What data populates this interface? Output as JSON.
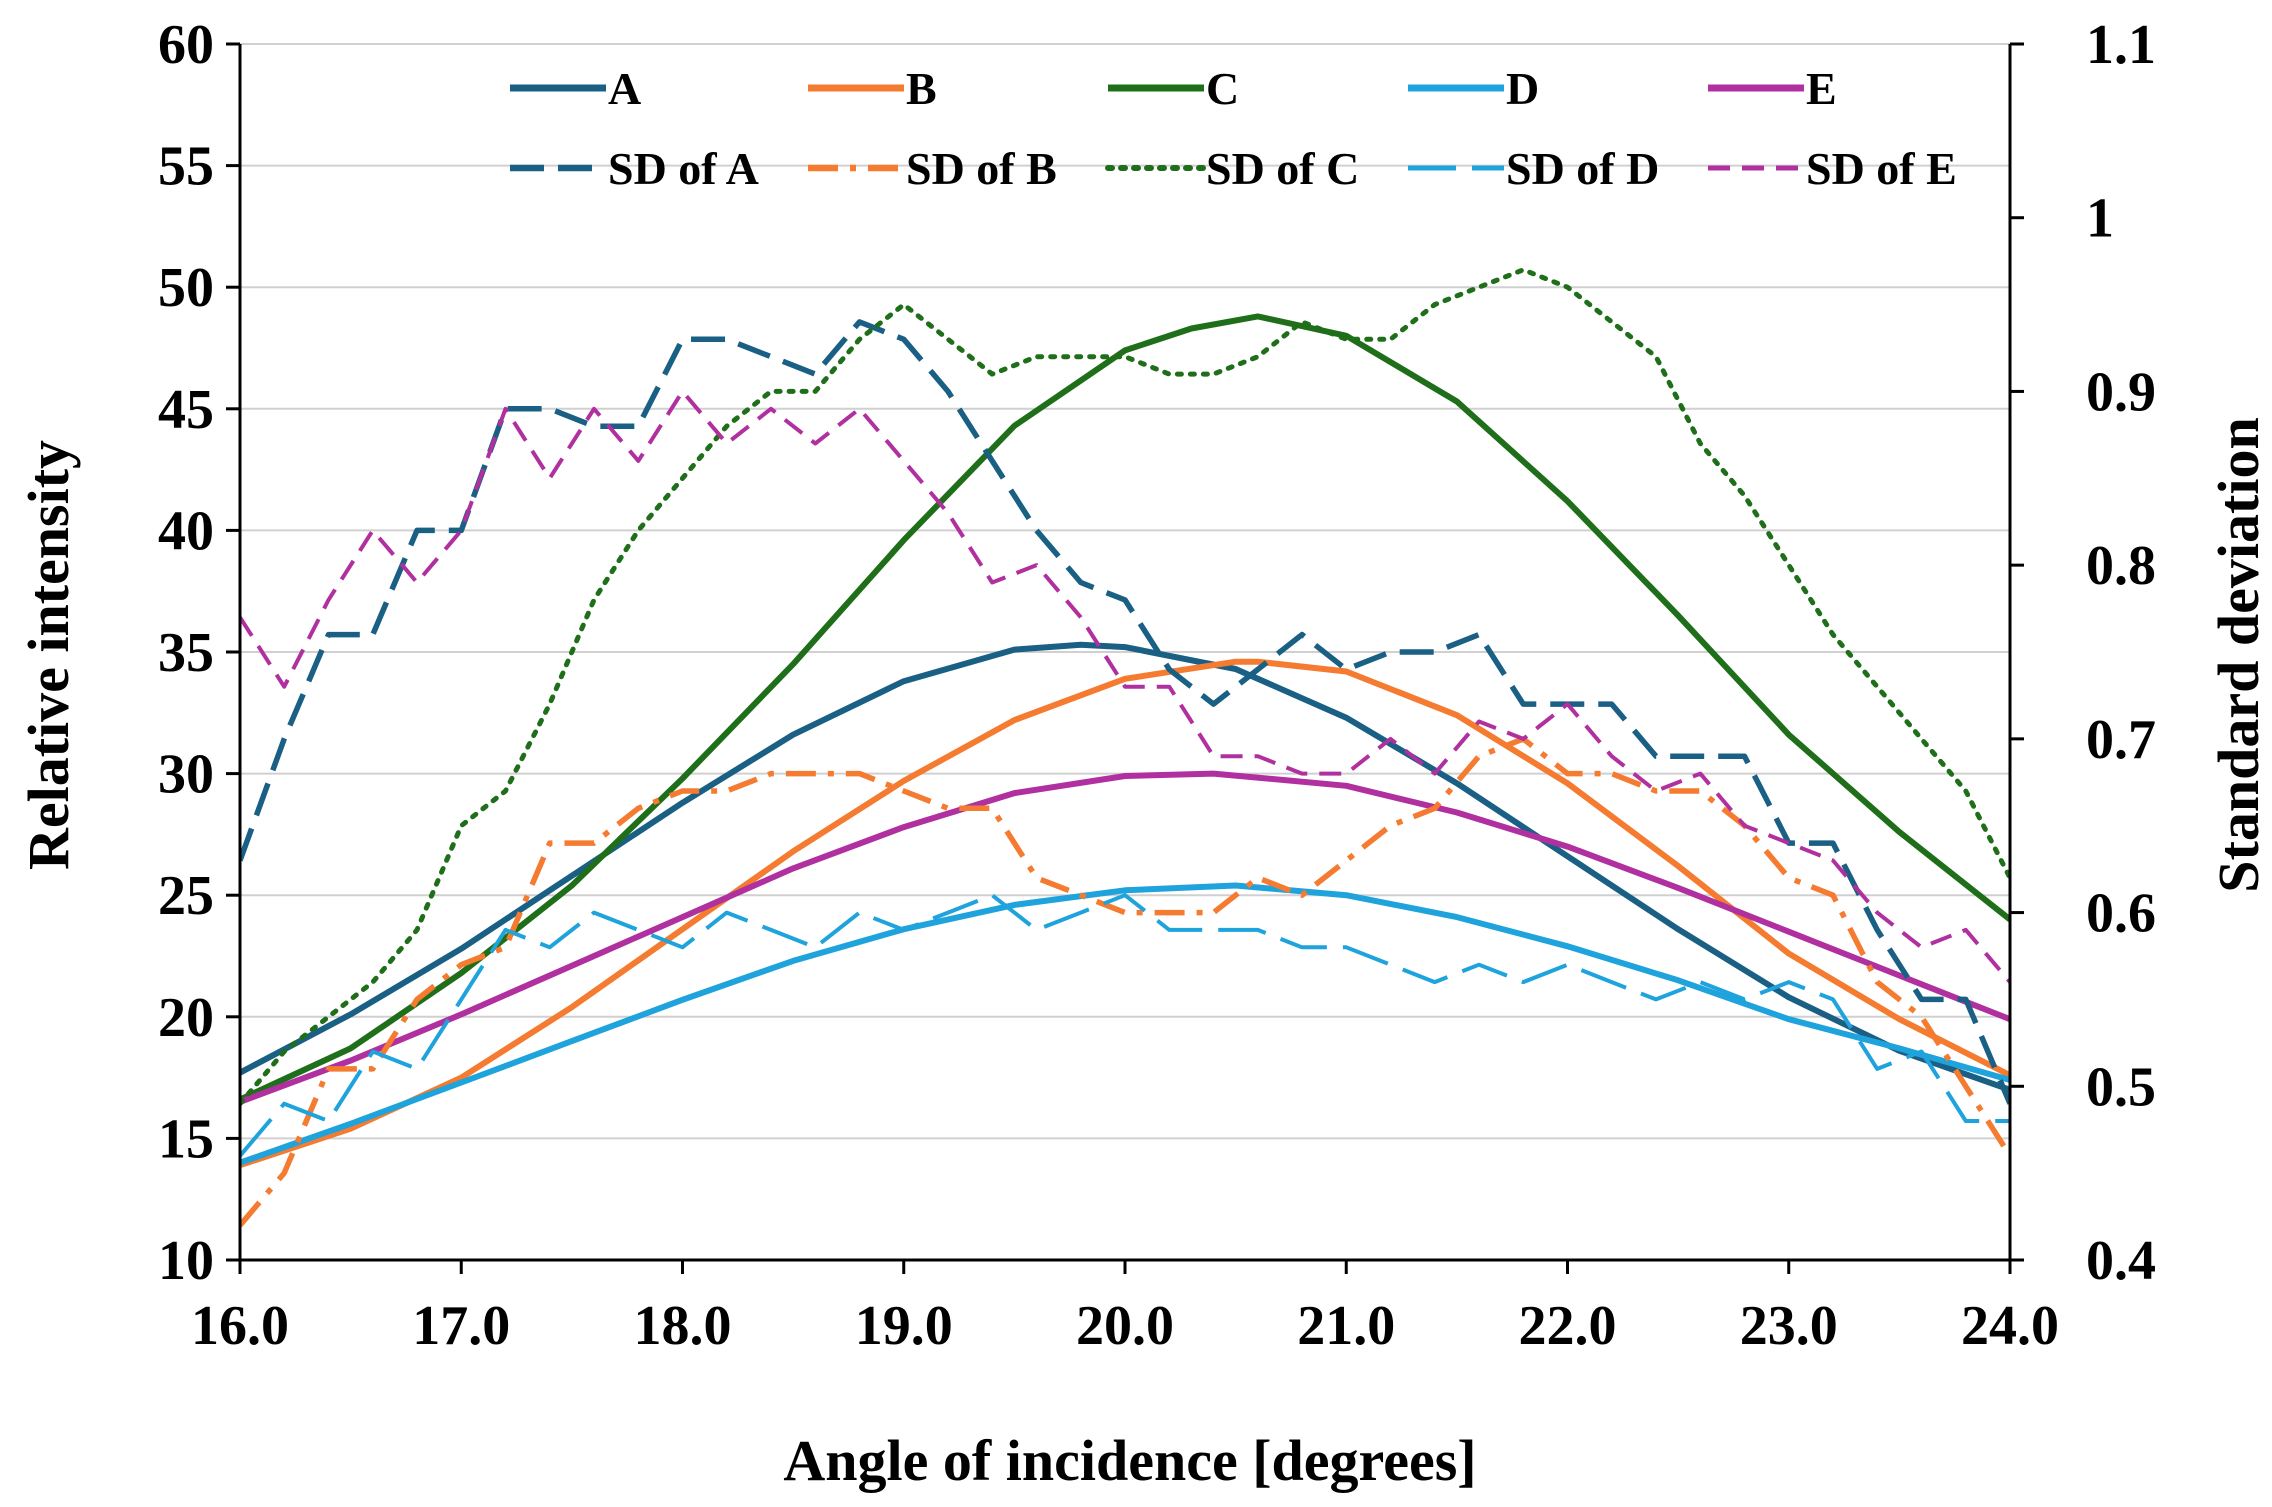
{
  "chart_data": {
    "type": "line",
    "title": "",
    "xlabel": "Angle of incidence [degrees]",
    "ylabel_left": "Relative intensity",
    "ylabel_right": "Standard deviation",
    "xlim": [
      16.0,
      24.0
    ],
    "ylim_left": [
      10,
      60
    ],
    "ylim_right": [
      0.4,
      1.1
    ],
    "x_ticks": [
      "16.0",
      "17.0",
      "18.0",
      "19.0",
      "20.0",
      "21.0",
      "22.0",
      "23.0",
      "24.0"
    ],
    "y_ticks_left": [
      "10",
      "15",
      "20",
      "25",
      "30",
      "35",
      "40",
      "45",
      "50",
      "55",
      "60"
    ],
    "y_ticks_right": [
      "0.4",
      "0.5",
      "0.6",
      "0.7",
      "0.8",
      "0.9",
      "1",
      "1.1"
    ],
    "grid": "horizontal",
    "legend_position": "top",
    "series": [
      {
        "name": "A",
        "axis": "left",
        "style": "solid",
        "color": "#1a5f84",
        "x": [
          16.0,
          16.5,
          17.0,
          17.5,
          18.0,
          18.5,
          19.0,
          19.5,
          19.8,
          20.0,
          20.5,
          21.0,
          21.5,
          22.0,
          22.5,
          23.0,
          23.5,
          24.0
        ],
        "y": [
          17.7,
          20.1,
          22.8,
          25.8,
          28.8,
          31.6,
          33.8,
          35.1,
          35.3,
          35.2,
          34.3,
          32.3,
          29.6,
          26.6,
          23.6,
          20.8,
          18.6,
          17.0
        ]
      },
      {
        "name": "B",
        "axis": "left",
        "style": "solid",
        "color": "#f47b30",
        "x": [
          16.0,
          16.5,
          17.0,
          17.5,
          18.0,
          18.5,
          19.0,
          19.5,
          20.0,
          20.5,
          20.6,
          21.0,
          21.5,
          22.0,
          22.5,
          23.0,
          23.5,
          24.0
        ],
        "y": [
          13.9,
          15.4,
          17.5,
          20.4,
          23.6,
          26.8,
          29.7,
          32.2,
          33.9,
          34.6,
          34.6,
          34.2,
          32.4,
          29.6,
          26.2,
          22.6,
          19.9,
          17.6
        ]
      },
      {
        "name": "C",
        "axis": "left",
        "style": "solid",
        "color": "#1f6f1a",
        "x": [
          16.0,
          16.5,
          17.0,
          17.5,
          18.0,
          18.5,
          19.0,
          19.5,
          20.0,
          20.3,
          20.6,
          21.0,
          21.5,
          22.0,
          22.5,
          23.0,
          23.5,
          24.0
        ],
        "y": [
          16.6,
          18.7,
          21.8,
          25.4,
          29.8,
          34.5,
          39.6,
          44.3,
          47.4,
          48.3,
          48.8,
          48.0,
          45.3,
          41.2,
          36.5,
          31.6,
          27.6,
          24.0
        ]
      },
      {
        "name": "D",
        "axis": "left",
        "style": "solid",
        "color": "#1fa3dc",
        "x": [
          16.0,
          16.5,
          17.0,
          17.5,
          18.0,
          18.5,
          19.0,
          19.5,
          20.0,
          20.5,
          21.0,
          21.5,
          22.0,
          22.5,
          23.0,
          23.5,
          24.0
        ],
        "y": [
          14.0,
          15.6,
          17.3,
          19.0,
          20.7,
          22.3,
          23.6,
          24.6,
          25.2,
          25.4,
          25.0,
          24.1,
          22.9,
          21.5,
          19.9,
          18.7,
          17.4
        ]
      },
      {
        "name": "E",
        "axis": "left",
        "style": "solid",
        "color": "#b0309f",
        "x": [
          16.0,
          16.5,
          17.0,
          17.5,
          18.0,
          18.5,
          19.0,
          19.5,
          20.0,
          20.4,
          21.0,
          21.5,
          22.0,
          22.5,
          23.0,
          23.5,
          24.0
        ],
        "y": [
          16.5,
          18.2,
          20.1,
          22.1,
          24.1,
          26.1,
          27.8,
          29.2,
          29.9,
          30.0,
          29.5,
          28.4,
          27.0,
          25.3,
          23.5,
          21.7,
          19.9
        ]
      },
      {
        "name": "SD of A",
        "axis": "right",
        "style": "dashed",
        "color": "#1a5f84",
        "x": [
          16.0,
          16.2,
          16.4,
          16.6,
          16.8,
          17.0,
          17.2,
          17.4,
          17.6,
          17.8,
          18.0,
          18.2,
          18.4,
          18.6,
          18.8,
          19.0,
          19.2,
          19.4,
          19.6,
          19.8,
          20.0,
          20.2,
          20.4,
          20.6,
          20.8,
          21.0,
          21.2,
          21.4,
          21.6,
          21.8,
          22.0,
          22.2,
          22.4,
          22.6,
          22.8,
          23.0,
          23.2,
          23.4,
          23.6,
          23.8,
          24.0
        ],
        "y": [
          0.63,
          0.7,
          0.76,
          0.76,
          0.82,
          0.82,
          0.89,
          0.89,
          0.88,
          0.88,
          0.93,
          0.93,
          0.92,
          0.91,
          0.94,
          0.93,
          0.9,
          0.86,
          0.82,
          0.79,
          0.78,
          0.74,
          0.72,
          0.74,
          0.76,
          0.74,
          0.75,
          0.75,
          0.76,
          0.72,
          0.72,
          0.72,
          0.69,
          0.69,
          0.69,
          0.64,
          0.64,
          0.59,
          0.55,
          0.55,
          0.49
        ]
      },
      {
        "name": "SD of B",
        "axis": "right",
        "style": "dashdot",
        "color": "#f47b30",
        "x": [
          16.0,
          16.2,
          16.4,
          16.6,
          16.8,
          17.0,
          17.2,
          17.4,
          17.6,
          17.8,
          18.0,
          18.2,
          18.4,
          18.6,
          18.8,
          19.0,
          19.2,
          19.4,
          19.6,
          19.8,
          20.0,
          20.2,
          20.4,
          20.6,
          20.8,
          21.0,
          21.2,
          21.4,
          21.6,
          21.8,
          22.0,
          22.2,
          22.4,
          22.6,
          22.8,
          23.0,
          23.2,
          23.4,
          23.6,
          23.8,
          24.0
        ],
        "y": [
          0.42,
          0.45,
          0.51,
          0.51,
          0.55,
          0.57,
          0.58,
          0.64,
          0.64,
          0.66,
          0.67,
          0.67,
          0.68,
          0.68,
          0.68,
          0.67,
          0.66,
          0.66,
          0.62,
          0.61,
          0.6,
          0.6,
          0.6,
          0.62,
          0.61,
          0.63,
          0.65,
          0.66,
          0.69,
          0.7,
          0.68,
          0.68,
          0.67,
          0.67,
          0.65,
          0.62,
          0.61,
          0.56,
          0.54,
          0.5,
          0.46
        ]
      },
      {
        "name": "SD of C",
        "axis": "right",
        "style": "dotted",
        "color": "#1f6f1a",
        "x": [
          16.0,
          16.2,
          16.4,
          16.6,
          16.8,
          17.0,
          17.2,
          17.4,
          17.6,
          17.8,
          18.0,
          18.2,
          18.4,
          18.6,
          18.8,
          19.0,
          19.2,
          19.4,
          19.6,
          19.8,
          20.0,
          20.2,
          20.4,
          20.6,
          20.8,
          21.0,
          21.2,
          21.4,
          21.6,
          21.8,
          22.0,
          22.2,
          22.4,
          22.6,
          22.8,
          23.0,
          23.2,
          23.4,
          23.6,
          23.8,
          24.0
        ],
        "y": [
          0.49,
          0.52,
          0.54,
          0.56,
          0.59,
          0.65,
          0.67,
          0.72,
          0.78,
          0.82,
          0.85,
          0.88,
          0.9,
          0.9,
          0.93,
          0.95,
          0.93,
          0.91,
          0.92,
          0.92,
          0.92,
          0.91,
          0.91,
          0.92,
          0.94,
          0.93,
          0.93,
          0.95,
          0.96,
          0.97,
          0.96,
          0.94,
          0.92,
          0.87,
          0.84,
          0.8,
          0.76,
          0.73,
          0.7,
          0.67,
          0.62
        ]
      },
      {
        "name": "SD of D",
        "axis": "right",
        "style": "longdash",
        "color": "#1fa3dc",
        "x": [
          16.0,
          16.2,
          16.4,
          16.6,
          16.8,
          17.0,
          17.2,
          17.4,
          17.6,
          17.8,
          18.0,
          18.2,
          18.4,
          18.6,
          18.8,
          19.0,
          19.2,
          19.4,
          19.6,
          19.8,
          20.0,
          20.2,
          20.4,
          20.6,
          20.8,
          21.0,
          21.2,
          21.4,
          21.6,
          21.8,
          22.0,
          22.2,
          22.4,
          22.6,
          22.8,
          23.0,
          23.2,
          23.4,
          23.6,
          23.8,
          24.0
        ],
        "y": [
          0.46,
          0.49,
          0.48,
          0.52,
          0.51,
          0.55,
          0.59,
          0.58,
          0.6,
          0.59,
          0.58,
          0.6,
          0.59,
          0.58,
          0.6,
          0.59,
          0.6,
          0.61,
          0.59,
          0.6,
          0.61,
          0.59,
          0.59,
          0.59,
          0.58,
          0.58,
          0.57,
          0.56,
          0.57,
          0.56,
          0.57,
          0.56,
          0.55,
          0.56,
          0.55,
          0.56,
          0.55,
          0.51,
          0.52,
          0.48,
          0.48
        ]
      },
      {
        "name": "SD of E",
        "axis": "right",
        "style": "shortdash",
        "color": "#b0309f",
        "x": [
          16.0,
          16.2,
          16.4,
          16.6,
          16.8,
          17.0,
          17.2,
          17.4,
          17.6,
          17.8,
          18.0,
          18.2,
          18.4,
          18.6,
          18.8,
          19.0,
          19.2,
          19.4,
          19.6,
          19.8,
          20.0,
          20.2,
          20.4,
          20.6,
          20.8,
          21.0,
          21.2,
          21.4,
          21.6,
          21.8,
          22.0,
          22.2,
          22.4,
          22.6,
          22.8,
          23.0,
          23.2,
          23.4,
          23.6,
          23.8,
          24.0
        ],
        "y": [
          0.77,
          0.73,
          0.78,
          0.82,
          0.79,
          0.82,
          0.89,
          0.85,
          0.89,
          0.86,
          0.9,
          0.87,
          0.89,
          0.87,
          0.89,
          0.86,
          0.83,
          0.79,
          0.8,
          0.77,
          0.73,
          0.73,
          0.69,
          0.69,
          0.68,
          0.68,
          0.7,
          0.68,
          0.71,
          0.7,
          0.72,
          0.69,
          0.67,
          0.68,
          0.65,
          0.64,
          0.63,
          0.6,
          0.58,
          0.59,
          0.56
        ]
      }
    ]
  }
}
